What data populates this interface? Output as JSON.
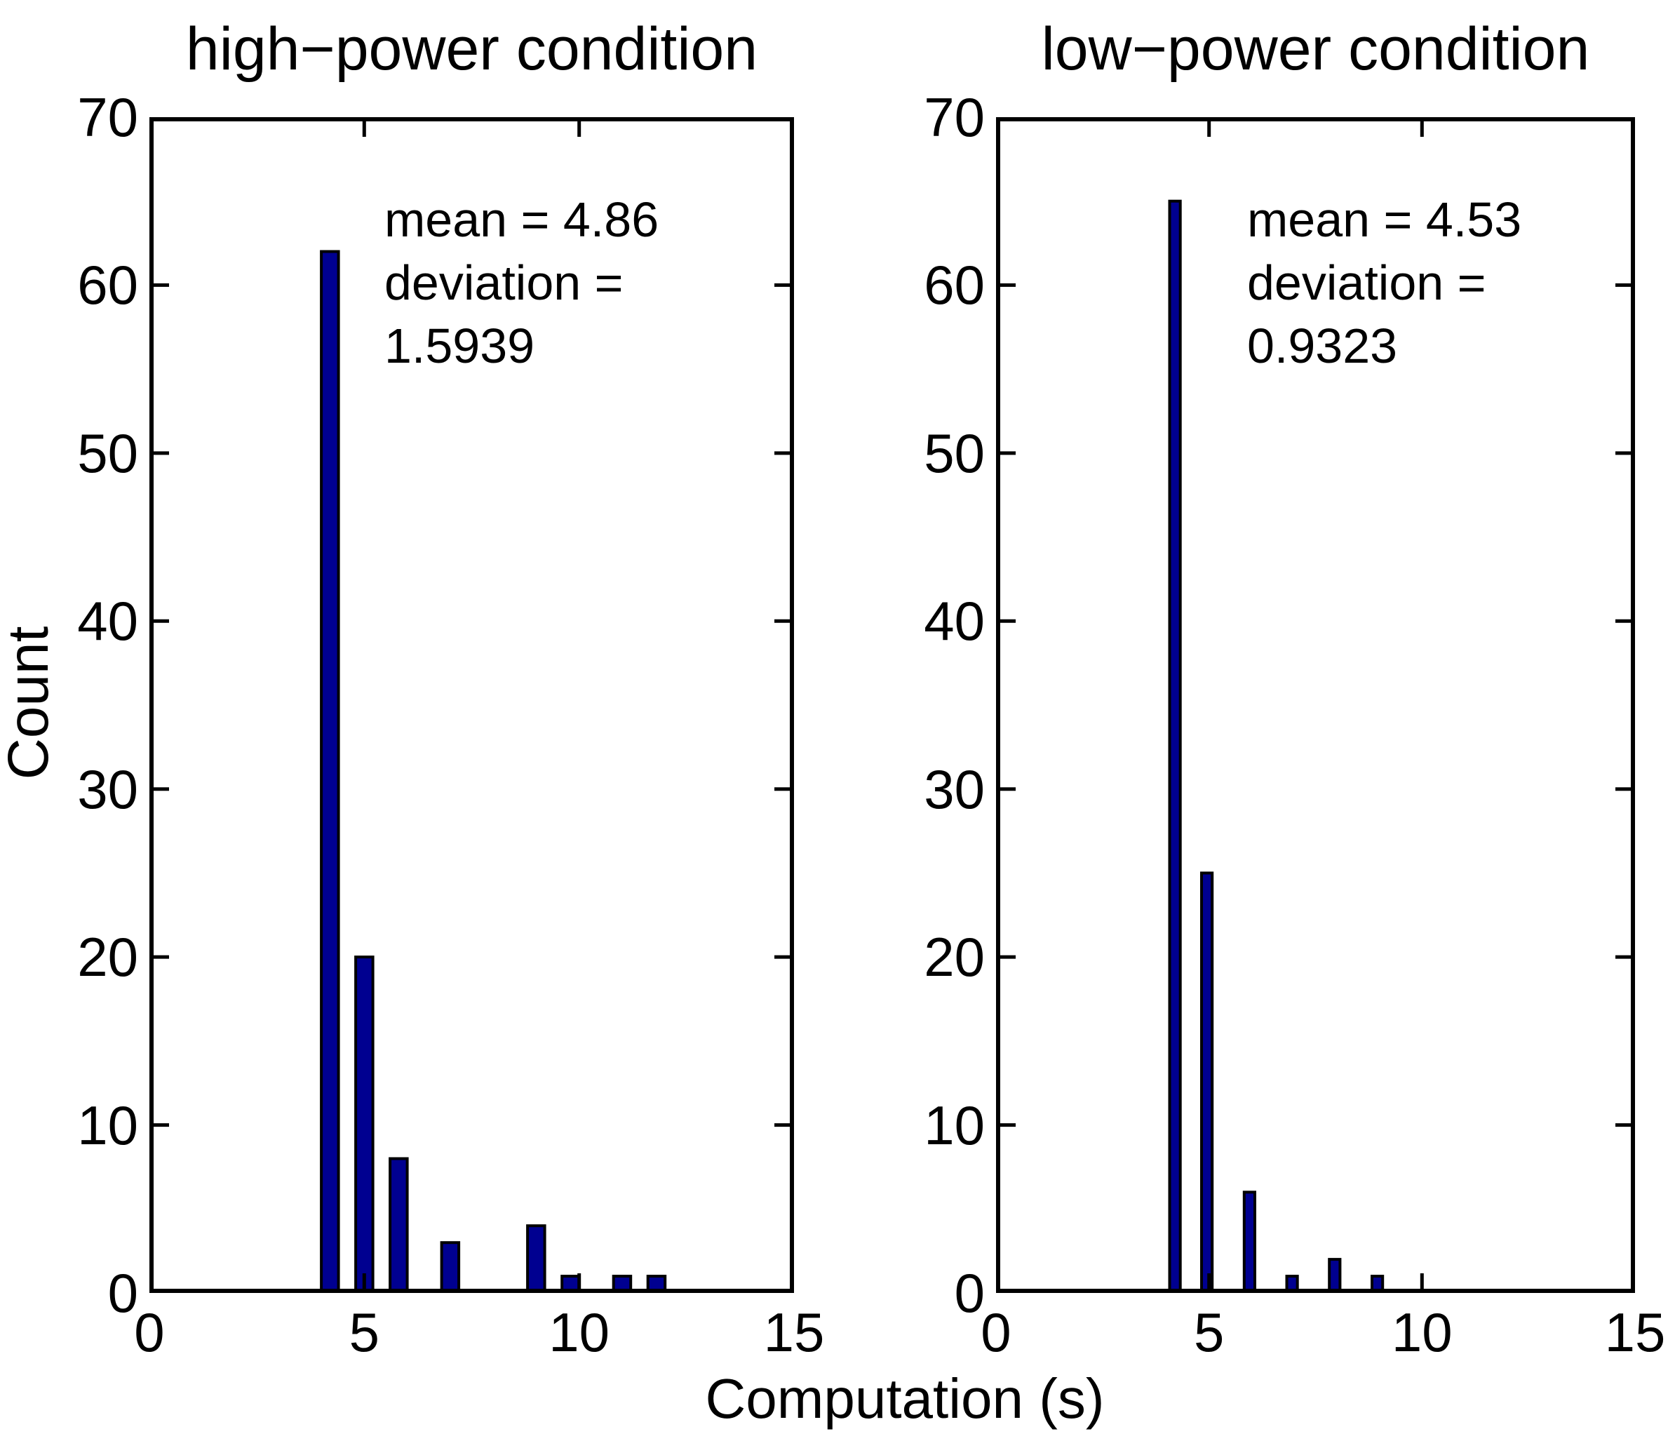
{
  "background_color": "#ffffff",
  "text_color": "#000000",
  "xlabel": "Computation (s)",
  "chart_data": [
    {
      "type": "bar",
      "subtype": "histogram",
      "title": "high−power condition",
      "ylabel": "Count",
      "xlabel": "Computation (s)",
      "annotation_lines": [
        "mean = 4.86",
        "deviation =",
        "1.5939"
      ],
      "mean": 4.86,
      "deviation": 1.5939,
      "xlim": [
        0,
        15
      ],
      "ylim": [
        0,
        70
      ],
      "xticks": [
        0,
        5,
        10,
        15
      ],
      "yticks": [
        0,
        10,
        20,
        30,
        40,
        50,
        60,
        70
      ],
      "grid": false,
      "bar_color": "#000090",
      "bar_edge_color": "#000000",
      "bin_width": 0.4,
      "bins": [
        {
          "x": 4.2,
          "count": 62
        },
        {
          "x": 5.0,
          "count": 20
        },
        {
          "x": 5.8,
          "count": 8
        },
        {
          "x": 7.0,
          "count": 3
        },
        {
          "x": 9.0,
          "count": 4
        },
        {
          "x": 9.8,
          "count": 1
        },
        {
          "x": 11.0,
          "count": 1
        },
        {
          "x": 11.8,
          "count": 1
        }
      ]
    },
    {
      "type": "bar",
      "subtype": "histogram",
      "title": "low−power condition",
      "ylabel": "",
      "xlabel": "Computation (s)",
      "annotation_lines": [
        "mean = 4.53",
        "deviation =",
        "0.9323"
      ],
      "mean": 4.53,
      "deviation": 0.9323,
      "xlim": [
        0,
        15
      ],
      "ylim": [
        0,
        70
      ],
      "xticks": [
        0,
        5,
        10,
        15
      ],
      "yticks": [
        0,
        10,
        20,
        30,
        40,
        50,
        60,
        70
      ],
      "grid": false,
      "bar_color": "#000090",
      "bar_edge_color": "#000000",
      "bin_width": 0.25,
      "bins": [
        {
          "x": 4.2,
          "count": 65
        },
        {
          "x": 4.95,
          "count": 25
        },
        {
          "x": 5.95,
          "count": 6
        },
        {
          "x": 6.95,
          "count": 1
        },
        {
          "x": 7.95,
          "count": 2
        },
        {
          "x": 8.95,
          "count": 1
        }
      ]
    }
  ]
}
